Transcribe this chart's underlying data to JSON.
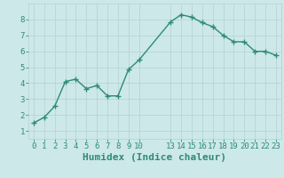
{
  "x": [
    0,
    1,
    2,
    3,
    4,
    5,
    6,
    7,
    8,
    9,
    10,
    13,
    14,
    15,
    16,
    17,
    18,
    19,
    20,
    21,
    22,
    23
  ],
  "y": [
    1.5,
    1.85,
    2.55,
    4.1,
    4.25,
    3.65,
    3.85,
    3.2,
    3.2,
    4.85,
    5.45,
    7.85,
    8.3,
    8.15,
    7.8,
    7.55,
    7.0,
    6.6,
    6.6,
    6.0,
    6.0,
    5.75
  ],
  "line_color": "#2e8b75",
  "marker": "+",
  "marker_size": 4,
  "bg_color": "#cce8e8",
  "grid_color": "#b8d4d4",
  "xlabel": "Humidex (Indice chaleur)",
  "xlim": [
    -0.5,
    23.5
  ],
  "ylim": [
    0.5,
    9.0
  ],
  "xticks": [
    0,
    1,
    2,
    3,
    4,
    5,
    6,
    7,
    8,
    9,
    10,
    13,
    14,
    15,
    16,
    17,
    18,
    19,
    20,
    21,
    22,
    23
  ],
  "yticks": [
    1,
    2,
    3,
    4,
    5,
    6,
    7,
    8
  ],
  "axis_color": "#2e8b75",
  "tick_label_fontsize": 6.5,
  "xlabel_fontsize": 8,
  "line_width": 1.0
}
